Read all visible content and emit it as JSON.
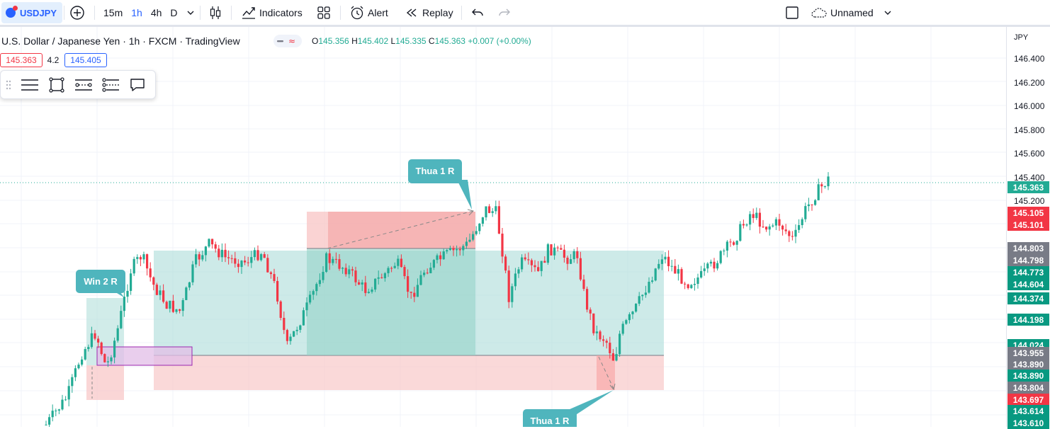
{
  "toolbar": {
    "symbol": "USDJPY",
    "intervals": [
      {
        "label": "15m",
        "active": false
      },
      {
        "label": "1h",
        "active": true
      },
      {
        "label": "4h",
        "active": false
      },
      {
        "label": "D",
        "active": false
      }
    ],
    "indicators_label": "Indicators",
    "alert_label": "Alert",
    "replay_label": "Replay",
    "layout_name": "Unnamed"
  },
  "legend": {
    "title": "U.S. Dollar / Japanese Yen · 1h · FXCM · TradingView",
    "open_key": "O",
    "open": "145.356",
    "high_key": "H",
    "high": "145.402",
    "low_key": "L",
    "low": "145.335",
    "close_key": "C",
    "close": "145.363",
    "change": "+0.007 (+0.00%)"
  },
  "bid_ask": {
    "bid": "145.363",
    "spread": "4.2",
    "ask": "145.405"
  },
  "annotations": {
    "win_label": "Win 2 R",
    "loss_label_top": "Thua 1 R",
    "loss_label_bottom": "Thua 1 R"
  },
  "price_axis": {
    "currency": "JPY",
    "ticks": [
      "146.400",
      "146.200",
      "146.000",
      "145.800",
      "145.600",
      "145.400",
      "145.200"
    ],
    "tags": [
      {
        "value": "145.363",
        "color": "#22ab94"
      },
      {
        "value": "145.105",
        "color": "#f23645"
      },
      {
        "value": "145.101",
        "color": "#f23645"
      },
      {
        "value": "144.803",
        "color": "#787b86"
      },
      {
        "value": "144.798",
        "color": "#787b86"
      },
      {
        "value": "144.773",
        "color": "#089981"
      },
      {
        "value": "144.604",
        "color": "#089981"
      },
      {
        "value": "144.374",
        "color": "#089981"
      },
      {
        "value": "144.198",
        "color": "#089981"
      },
      {
        "value": "144.024",
        "color": "#089981"
      },
      {
        "value": "143.955",
        "color": "#787b86"
      },
      {
        "value": "143.890",
        "color": "#787b86"
      },
      {
        "value": "143.890",
        "color": "#089981"
      },
      {
        "value": "143.804",
        "color": "#787b86"
      },
      {
        "value": "143.697",
        "color": "#f23645"
      },
      {
        "value": "143.614",
        "color": "#089981"
      },
      {
        "value": "143.610",
        "color": "#089981"
      }
    ]
  },
  "colors": {
    "up": "#22ab94",
    "down": "#f23645",
    "accent": "#2962ff",
    "callout": "#4fb5bd"
  }
}
